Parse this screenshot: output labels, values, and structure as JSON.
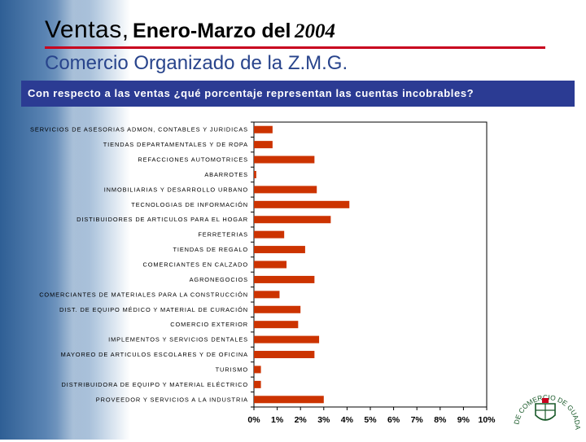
{
  "header": {
    "title_main": "Ventas,",
    "title_mid": "Enero-Marzo del",
    "title_year": "2004",
    "subtitle": "Comercio Organizado de la Z.M.G.",
    "question": "Con respecto a las ventas ¿qué porcentaje representan las cuentas incobrables?"
  },
  "logo": {
    "text": "CAMARA DE COMERCIO DE GUADALAJARA"
  },
  "colors": {
    "bar": "#cc3300",
    "question_bg": "#2b3b93",
    "subtitle": "#28448c",
    "rule": "#c8001e"
  },
  "chart_data": {
    "type": "bar",
    "orientation": "horizontal",
    "categories": [
      "SERVICIOS DE ASESORIAS ADMON, CONTABLES Y JURIDICAS",
      "TIENDAS DEPARTAMENTALES Y DE ROPA",
      "REFACCIONES AUTOMOTRICES",
      "ABARROTES",
      "INMOBILIARIAS Y DESARROLLO URBANO",
      "TECNOLOGIAS DE INFORMACIÓN",
      "DISTIBUIDORES DE ARTICULOS PARA EL HOGAR",
      "FERRETERIAS",
      "TIENDAS DE REGALO",
      "COMERCIANTES EN CALZADO",
      "AGRONEGOCIOS",
      "COMERCIANTES DE MATERIALES PARA LA CONSTRUCCIÓN",
      "DIST. DE EQUIPO MÉDICO Y MATERIAL DE CURACIÓN",
      "COMERCIO EXTERIOR",
      "IMPLEMENTOS Y SERVICIOS DENTALES",
      "MAYOREO DE ARTICULOS ESCOLARES Y DE OFICINA",
      "TURISMO",
      "DISTRIBUIDORA DE EQUIPO Y MATERIAL ELÉCTRICO",
      "PROVEEDOR Y SERVICIOS A LA INDUSTRIA"
    ],
    "values": [
      0.8,
      0.8,
      2.6,
      0.1,
      2.7,
      4.1,
      3.3,
      1.3,
      2.2,
      1.4,
      2.6,
      1.1,
      2.0,
      1.9,
      2.8,
      2.6,
      0.3,
      0.3,
      3.0
    ],
    "xlim": [
      0,
      10
    ],
    "x_ticks": [
      "0%",
      "1%",
      "2%",
      "3%",
      "4%",
      "5%",
      "6%",
      "7%",
      "8%",
      "9%",
      "10%"
    ],
    "title": "",
    "xlabel": "",
    "ylabel": "",
    "grid": false,
    "legend": "none"
  }
}
